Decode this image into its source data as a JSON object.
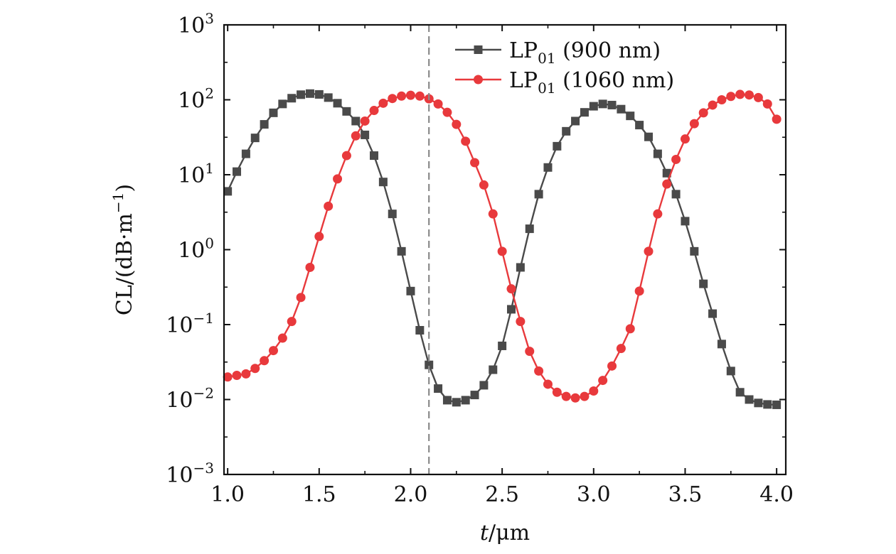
{
  "chart_data": {
    "type": "line",
    "title": "",
    "xlabel": {
      "italic": "t",
      "rest": "/μm"
    },
    "ylabel": "CL/(dB·m",
    "ylabel_sup": "−1",
    "ylabel_close": ")",
    "xlim": [
      0.98,
      4.05
    ],
    "ylim_log10": [
      -3,
      3
    ],
    "yscale": "log",
    "x_ticks": [
      1.0,
      1.5,
      2.0,
      2.5,
      3.0,
      3.5,
      4.0
    ],
    "x_tick_labels": [
      "1.0",
      "1.5",
      "2.0",
      "2.5",
      "3.0",
      "3.5",
      "4.0"
    ],
    "y_tick_exponents": [
      -3,
      -2,
      -1,
      0,
      1,
      2,
      3
    ],
    "y_tick_base": "10",
    "y_tick_exp_labels": [
      "−3",
      "−2",
      "−1",
      "0",
      "1",
      "2",
      "3"
    ],
    "vline_x": 2.1,
    "vline_color": "#8a8a8a",
    "legend_position": "top-right",
    "x": [
      1.0,
      1.05,
      1.1,
      1.15,
      1.2,
      1.25,
      1.3,
      1.35,
      1.4,
      1.45,
      1.5,
      1.55,
      1.6,
      1.65,
      1.7,
      1.75,
      1.8,
      1.85,
      1.9,
      1.95,
      2.0,
      2.05,
      2.1,
      2.15,
      2.2,
      2.25,
      2.3,
      2.35,
      2.4,
      2.45,
      2.5,
      2.55,
      2.6,
      2.65,
      2.7,
      2.75,
      2.8,
      2.85,
      2.9,
      2.95,
      3.0,
      3.05,
      3.1,
      3.15,
      3.2,
      3.25,
      3.3,
      3.35,
      3.4,
      3.45,
      3.5,
      3.55,
      3.6,
      3.65,
      3.7,
      3.75,
      3.8,
      3.85,
      3.9,
      3.95,
      4.0
    ],
    "series": [
      {
        "name": "LP",
        "name_sub": "01",
        "name_suffix": "(900 nm)",
        "color": "#4a4a4a",
        "marker": "square",
        "values": [
          6,
          11,
          19,
          31,
          47,
          67,
          88,
          105,
          117,
          121,
          118,
          107,
          90,
          70,
          52,
          34,
          18,
          8,
          3,
          0.95,
          0.28,
          0.084,
          0.029,
          0.014,
          0.0098,
          0.0092,
          0.0098,
          0.0115,
          0.0155,
          0.025,
          0.052,
          0.16,
          0.58,
          1.9,
          5.5,
          12.5,
          24,
          38,
          52,
          68,
          82,
          88,
          85,
          75,
          61,
          46,
          32,
          19,
          10.5,
          5.5,
          2.4,
          0.95,
          0.35,
          0.14,
          0.055,
          0.024,
          0.0125,
          0.01,
          0.009,
          0.0086,
          0.0085
        ]
      },
      {
        "name": "LP",
        "name_sub": "01",
        "name_suffix": "(1060 nm)",
        "color": "#e8393c",
        "marker": "circle",
        "values": [
          0.02,
          0.021,
          0.022,
          0.026,
          0.033,
          0.045,
          0.066,
          0.11,
          0.23,
          0.58,
          1.5,
          3.8,
          8.8,
          18,
          33,
          52,
          72,
          90,
          104,
          112,
          115,
          112,
          103,
          88,
          68,
          47,
          28,
          14.5,
          7.3,
          3,
          0.95,
          0.3,
          0.11,
          0.044,
          0.024,
          0.016,
          0.0125,
          0.011,
          0.0105,
          0.011,
          0.013,
          0.018,
          0.028,
          0.048,
          0.088,
          0.28,
          0.95,
          3,
          7.5,
          16,
          30,
          48,
          67,
          85,
          100,
          111,
          118,
          116,
          107,
          88,
          55
        ]
      }
    ]
  }
}
